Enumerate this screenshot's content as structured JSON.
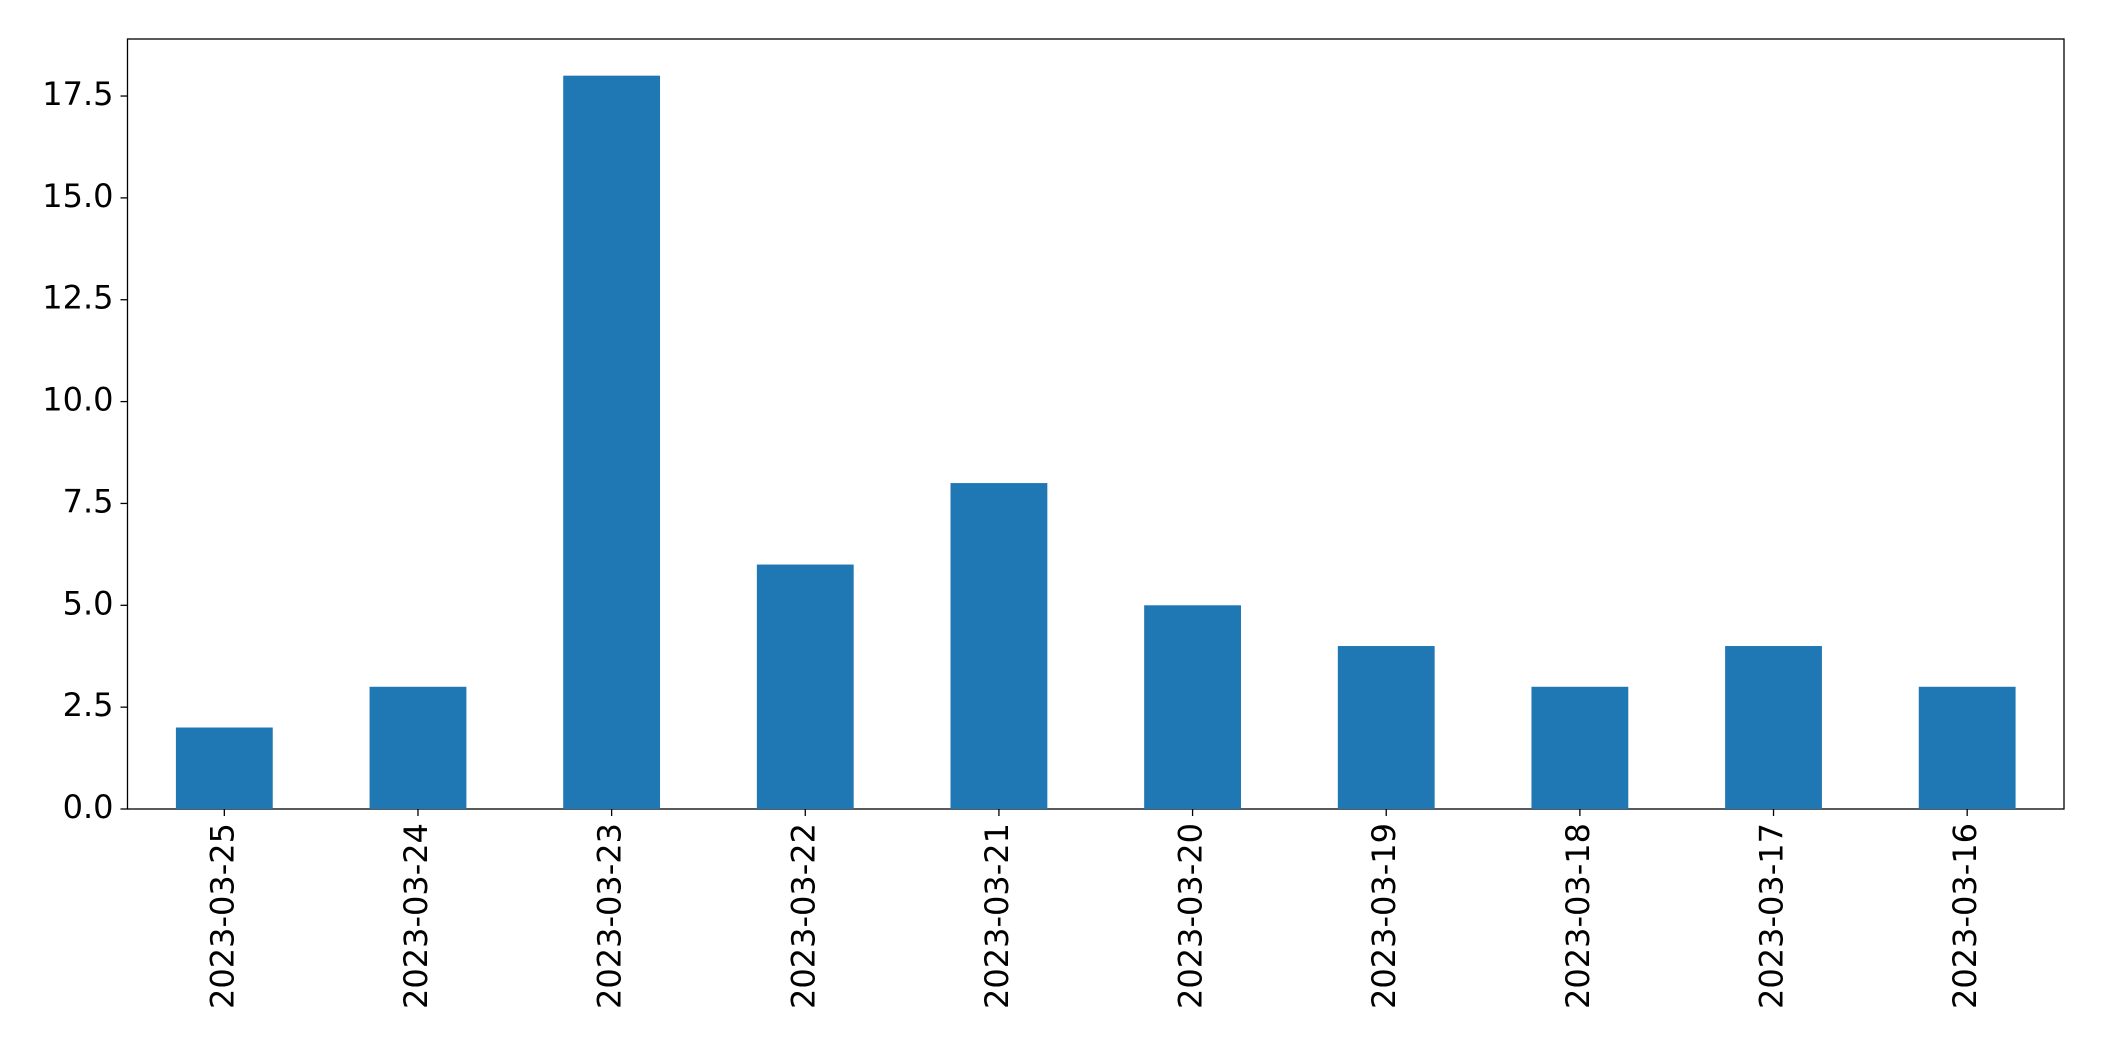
{
  "chart_data": {
    "type": "bar",
    "categories": [
      "2023-03-25",
      "2023-03-24",
      "2023-03-23",
      "2023-03-22",
      "2023-03-21",
      "2023-03-20",
      "2023-03-19",
      "2023-03-18",
      "2023-03-17",
      "2023-03-16"
    ],
    "values": [
      2,
      3,
      18,
      6,
      8,
      5,
      4,
      3,
      4,
      3
    ],
    "color": "#1f77b4",
    "ylim": [
      0,
      18.9
    ],
    "yticks": [
      {
        "value": 0,
        "label": "0.0"
      },
      2.5,
      {
        "value": 5,
        "label": "5.0"
      },
      7.5,
      {
        "value": 10,
        "label": "10.0"
      },
      12.5,
      {
        "value": 15,
        "label": "15.0"
      },
      17.5
    ],
    "grid": false
  }
}
